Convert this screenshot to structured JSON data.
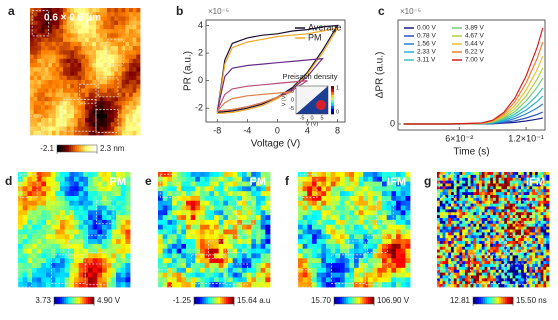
{
  "chart_data": [
    {
      "type": "image",
      "panel_label": "a",
      "title": "0.6 × 0.6 μm",
      "colormap": "afmhot",
      "colorbar_ticks": [
        -2.1,
        {
          "value": 2.3,
          "label": "2.3 nm"
        }
      ]
    },
    {
      "type": "line",
      "panel_label": "b",
      "xlabel": "Voltage (V)",
      "ylabel": "PR (a.u.)",
      "y_multiplier": "×10⁻⁵",
      "xlim": [
        -9.5,
        9
      ],
      "xticks": [
        -8,
        -4,
        0,
        4,
        8
      ],
      "ylim": [
        -3,
        4.4
      ],
      "yticks": [
        -2,
        0,
        2,
        4
      ],
      "legend": "upper right",
      "series": [
        {
          "name": "Average",
          "color": "#1a1030",
          "x": [
            -8,
            -6,
            -4,
            -2,
            0,
            2,
            4,
            6,
            8,
            6,
            4,
            2,
            0,
            -2,
            -4,
            -6,
            -7,
            -8
          ],
          "values": [
            -2.3,
            -2.2,
            -2.0,
            -1.7,
            -1.2,
            -0.5,
            0.6,
            2.2,
            4.0,
            3.9,
            3.7,
            3.6,
            3.4,
            3.3,
            3.1,
            2.7,
            1.5,
            -2.3
          ]
        },
        {
          "name": "PM",
          "color": "#f5a623",
          "x": [
            -8,
            -6,
            -4,
            -2,
            0,
            2,
            4,
            6,
            8,
            6,
            4,
            2,
            0,
            -2,
            -4,
            -6,
            -7,
            -8
          ],
          "values": [
            -2.4,
            -2.3,
            -2.1,
            -1.8,
            -1.3,
            -0.6,
            0.5,
            2.0,
            3.8,
            3.6,
            3.4,
            3.3,
            3.2,
            3.0,
            2.8,
            2.4,
            1.2,
            -2.4
          ]
        },
        {
          "color": "#6a2c8a",
          "x": [
            -8,
            -6,
            -4,
            -2,
            0,
            2,
            4,
            6,
            4,
            2,
            0,
            -2,
            -4,
            -6,
            -7,
            -8
          ],
          "values": [
            -2.2,
            -2.1,
            -1.9,
            -1.6,
            -1.2,
            -0.6,
            0.3,
            1.6,
            1.5,
            1.4,
            1.3,
            1.2,
            1.1,
            0.9,
            0.3,
            -2.2
          ]
        },
        {
          "color": "#b5507a",
          "x": [
            -8,
            -6,
            -4,
            -2,
            0,
            2,
            4,
            2,
            0,
            -2,
            -4,
            -6,
            -7,
            -8
          ],
          "values": [
            -2.2,
            -2.1,
            -1.9,
            -1.6,
            -1.2,
            -0.7,
            0.0,
            -0.1,
            -0.2,
            -0.3,
            -0.4,
            -0.6,
            -1.0,
            -2.2
          ]
        },
        {
          "color": "#e0804a",
          "x": [
            -8,
            -6,
            -4,
            -2,
            0,
            2,
            0,
            -2,
            -4,
            -6,
            -7,
            -8
          ],
          "values": [
            -2.2,
            -2.1,
            -1.9,
            -1.6,
            -1.2,
            -0.8,
            -0.9,
            -1.0,
            -1.1,
            -1.3,
            -1.6,
            -2.2
          ]
        }
      ],
      "inset": {
        "title": "Preisach density",
        "xlabel": "V (V)",
        "ylabel": "V (V)",
        "xticks": [
          -5,
          0,
          5
        ],
        "yticks": [
          -5,
          0,
          5
        ],
        "xlim": [
          -8,
          8
        ],
        "ylim": [
          -8,
          8
        ],
        "colorbar_ticks": [
          0,
          1
        ]
      }
    },
    {
      "type": "line",
      "panel_label": "c",
      "xlabel": "Time (s)",
      "ylabel": "ΔPR (a.u.)",
      "y_multiplier": "×10⁻⁵",
      "xlim": [
        0.005,
        0.137
      ],
      "xticks": [
        {
          "value": 0.06,
          "label": "6×10⁻²"
        },
        {
          "value": 0.12,
          "label": "1.2×10⁻¹"
        }
      ],
      "ylim": [
        -0.3,
        5.2
      ],
      "yticks": [
        0
      ],
      "legend": "upper left",
      "x": [
        0.01,
        0.05,
        0.08,
        0.09,
        0.1,
        0.11,
        0.12,
        0.13,
        0.135
      ],
      "series": [
        {
          "name": "0.00 V",
          "color": "#1f1f8a",
          "values": [
            0,
            0,
            0,
            0.01,
            0.04,
            0.08,
            0.15,
            0.24,
            0.3
          ]
        },
        {
          "name": "0.78 V",
          "color": "#2a4fc0",
          "values": [
            0,
            0,
            0.01,
            0.02,
            0.07,
            0.16,
            0.3,
            0.48,
            0.6
          ]
        },
        {
          "name": "1.56 V",
          "color": "#2a7fd8",
          "values": [
            0,
            0,
            0.01,
            0.04,
            0.12,
            0.27,
            0.5,
            0.8,
            1.0
          ]
        },
        {
          "name": "2.33 V",
          "color": "#25aee0",
          "values": [
            0,
            0,
            0.01,
            0.06,
            0.17,
            0.38,
            0.7,
            1.12,
            1.4
          ]
        },
        {
          "name": "3.11 V",
          "color": "#35c7b5",
          "values": [
            0,
            0,
            0.02,
            0.07,
            0.22,
            0.49,
            0.9,
            1.44,
            1.8
          ]
        },
        {
          "name": "3.89 V",
          "color": "#6fd07a",
          "values": [
            0,
            0,
            0.02,
            0.09,
            0.28,
            0.62,
            1.15,
            1.84,
            2.3
          ]
        },
        {
          "name": "4.67 V",
          "color": "#b0d040",
          "values": [
            0,
            0,
            0.03,
            0.11,
            0.34,
            0.76,
            1.4,
            2.24,
            2.8
          ]
        },
        {
          "name": "5.44 V",
          "color": "#e8c030",
          "values": [
            0,
            0,
            0.03,
            0.14,
            0.41,
            0.92,
            1.7,
            2.72,
            3.4
          ]
        },
        {
          "name": "6.22 V",
          "color": "#f08030",
          "values": [
            0,
            0,
            0.04,
            0.16,
            0.49,
            1.11,
            2.05,
            3.28,
            4.1
          ]
        },
        {
          "name": "7.00 V",
          "color": "#d02020",
          "values": [
            0,
            0,
            0.05,
            0.19,
            0.58,
            1.3,
            2.4,
            3.84,
            4.8
          ]
        }
      ]
    },
    {
      "type": "image",
      "panel_label": "d",
      "title": "PM",
      "colormap": "jet",
      "colorbar_ticks": [
        3.73,
        {
          "value": 4.9,
          "label": "4.90 V"
        }
      ]
    },
    {
      "type": "image",
      "panel_label": "e",
      "title": "PM",
      "colormap": "jet",
      "colorbar_ticks": [
        -1.25,
        {
          "value": 15.64,
          "label": "15.64 a.u"
        }
      ]
    },
    {
      "type": "image",
      "panel_label": "f",
      "title": "IFM",
      "colormap": "jet",
      "colorbar_ticks": [
        {
          "value": 15.7,
          "label": "15.70"
        },
        {
          "value": 106.9,
          "label": "106.90 V"
        }
      ]
    },
    {
      "type": "image",
      "panel_label": "g",
      "title": "IFM",
      "colormap": "jet",
      "colorbar_ticks": [
        12.81,
        {
          "value": 15.5,
          "label": "15.50 ns"
        }
      ]
    }
  ]
}
